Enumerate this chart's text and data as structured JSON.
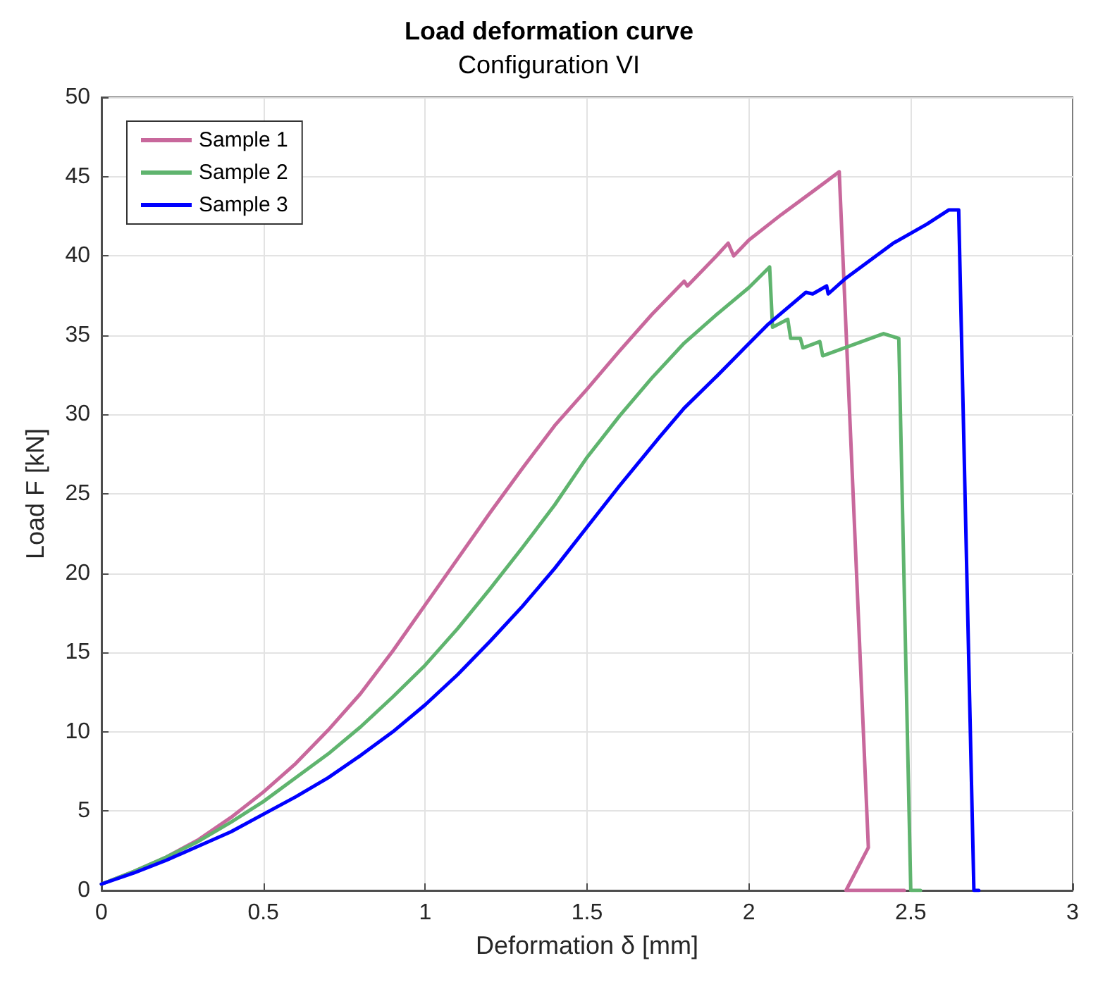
{
  "chart_data": {
    "type": "line",
    "title": "Load deformation curve",
    "subtitle": "Configuration VI",
    "xlabel": "Deformation δ [mm]",
    "ylabel": "Load F [kN]",
    "xlim": [
      0,
      3
    ],
    "xticks": [
      0,
      0.5,
      1,
      1.5,
      2,
      2.5,
      3
    ],
    "ylim": [
      0,
      50
    ],
    "yticks": [
      0,
      5,
      10,
      15,
      20,
      25,
      30,
      35,
      40,
      45,
      50
    ],
    "grid": true,
    "legend": "top left",
    "marker": "none",
    "line_style": "solid",
    "series": [
      {
        "name": "Sample 1",
        "color": "#c8689c",
        "x": [
          0,
          0.1,
          0.2,
          0.3,
          0.4,
          0.5,
          0.6,
          0.7,
          0.8,
          0.9,
          1.0,
          1.1,
          1.2,
          1.3,
          1.4,
          1.5,
          1.6,
          1.7,
          1.8,
          1.81,
          1.9,
          1.936,
          1.953,
          2.0,
          2.1,
          2.2,
          2.279,
          2.369,
          2.3,
          2.48
        ],
        "values": [
          0.4,
          1.2,
          2.1,
          3.2,
          4.6,
          6.2,
          8.0,
          10.1,
          12.4,
          15.1,
          18.0,
          20.9,
          23.8,
          26.6,
          29.3,
          31.6,
          34.0,
          36.3,
          38.4,
          38.1,
          40.0,
          40.8,
          40.0,
          41.0,
          42.6,
          44.1,
          45.3,
          2.7,
          0,
          0
        ]
      },
      {
        "name": "Sample 2",
        "color": "#5fb46e",
        "x": [
          0,
          0.1,
          0.2,
          0.3,
          0.4,
          0.5,
          0.6,
          0.7,
          0.8,
          0.9,
          1.0,
          1.1,
          1.2,
          1.3,
          1.4,
          1.5,
          1.6,
          1.7,
          1.8,
          1.9,
          2.0,
          2.064,
          2.073,
          2.12,
          2.129,
          2.159,
          2.167,
          2.219,
          2.228,
          2.416,
          2.463,
          2.5,
          2.53
        ],
        "values": [
          0.4,
          1.2,
          2.1,
          3.1,
          4.3,
          5.6,
          7.1,
          8.6,
          10.3,
          12.2,
          14.2,
          16.5,
          19.0,
          21.6,
          24.3,
          27.3,
          29.9,
          32.3,
          34.5,
          36.3,
          38.0,
          39.3,
          35.5,
          36.0,
          34.8,
          34.8,
          34.2,
          34.6,
          33.7,
          35.1,
          34.8,
          0,
          0
        ]
      },
      {
        "name": "Sample 3",
        "color": "#0000ff",
        "x": [
          0,
          0.1,
          0.2,
          0.3,
          0.4,
          0.5,
          0.6,
          0.7,
          0.8,
          0.9,
          1.0,
          1.1,
          1.2,
          1.3,
          1.4,
          1.5,
          1.6,
          1.725,
          1.8,
          1.9,
          1.987,
          2.06,
          2.176,
          2.197,
          2.24,
          2.245,
          2.3,
          2.446,
          2.55,
          2.618,
          2.648,
          2.695,
          2.71
        ],
        "values": [
          0.4,
          1.1,
          1.9,
          2.8,
          3.7,
          4.8,
          5.9,
          7.1,
          8.5,
          10.0,
          11.7,
          13.6,
          15.7,
          17.9,
          20.3,
          22.9,
          25.5,
          28.6,
          30.4,
          32.4,
          34.2,
          35.7,
          37.7,
          37.6,
          38.1,
          37.6,
          38.6,
          40.8,
          42.0,
          42.9,
          42.9,
          0,
          0
        ]
      }
    ]
  }
}
